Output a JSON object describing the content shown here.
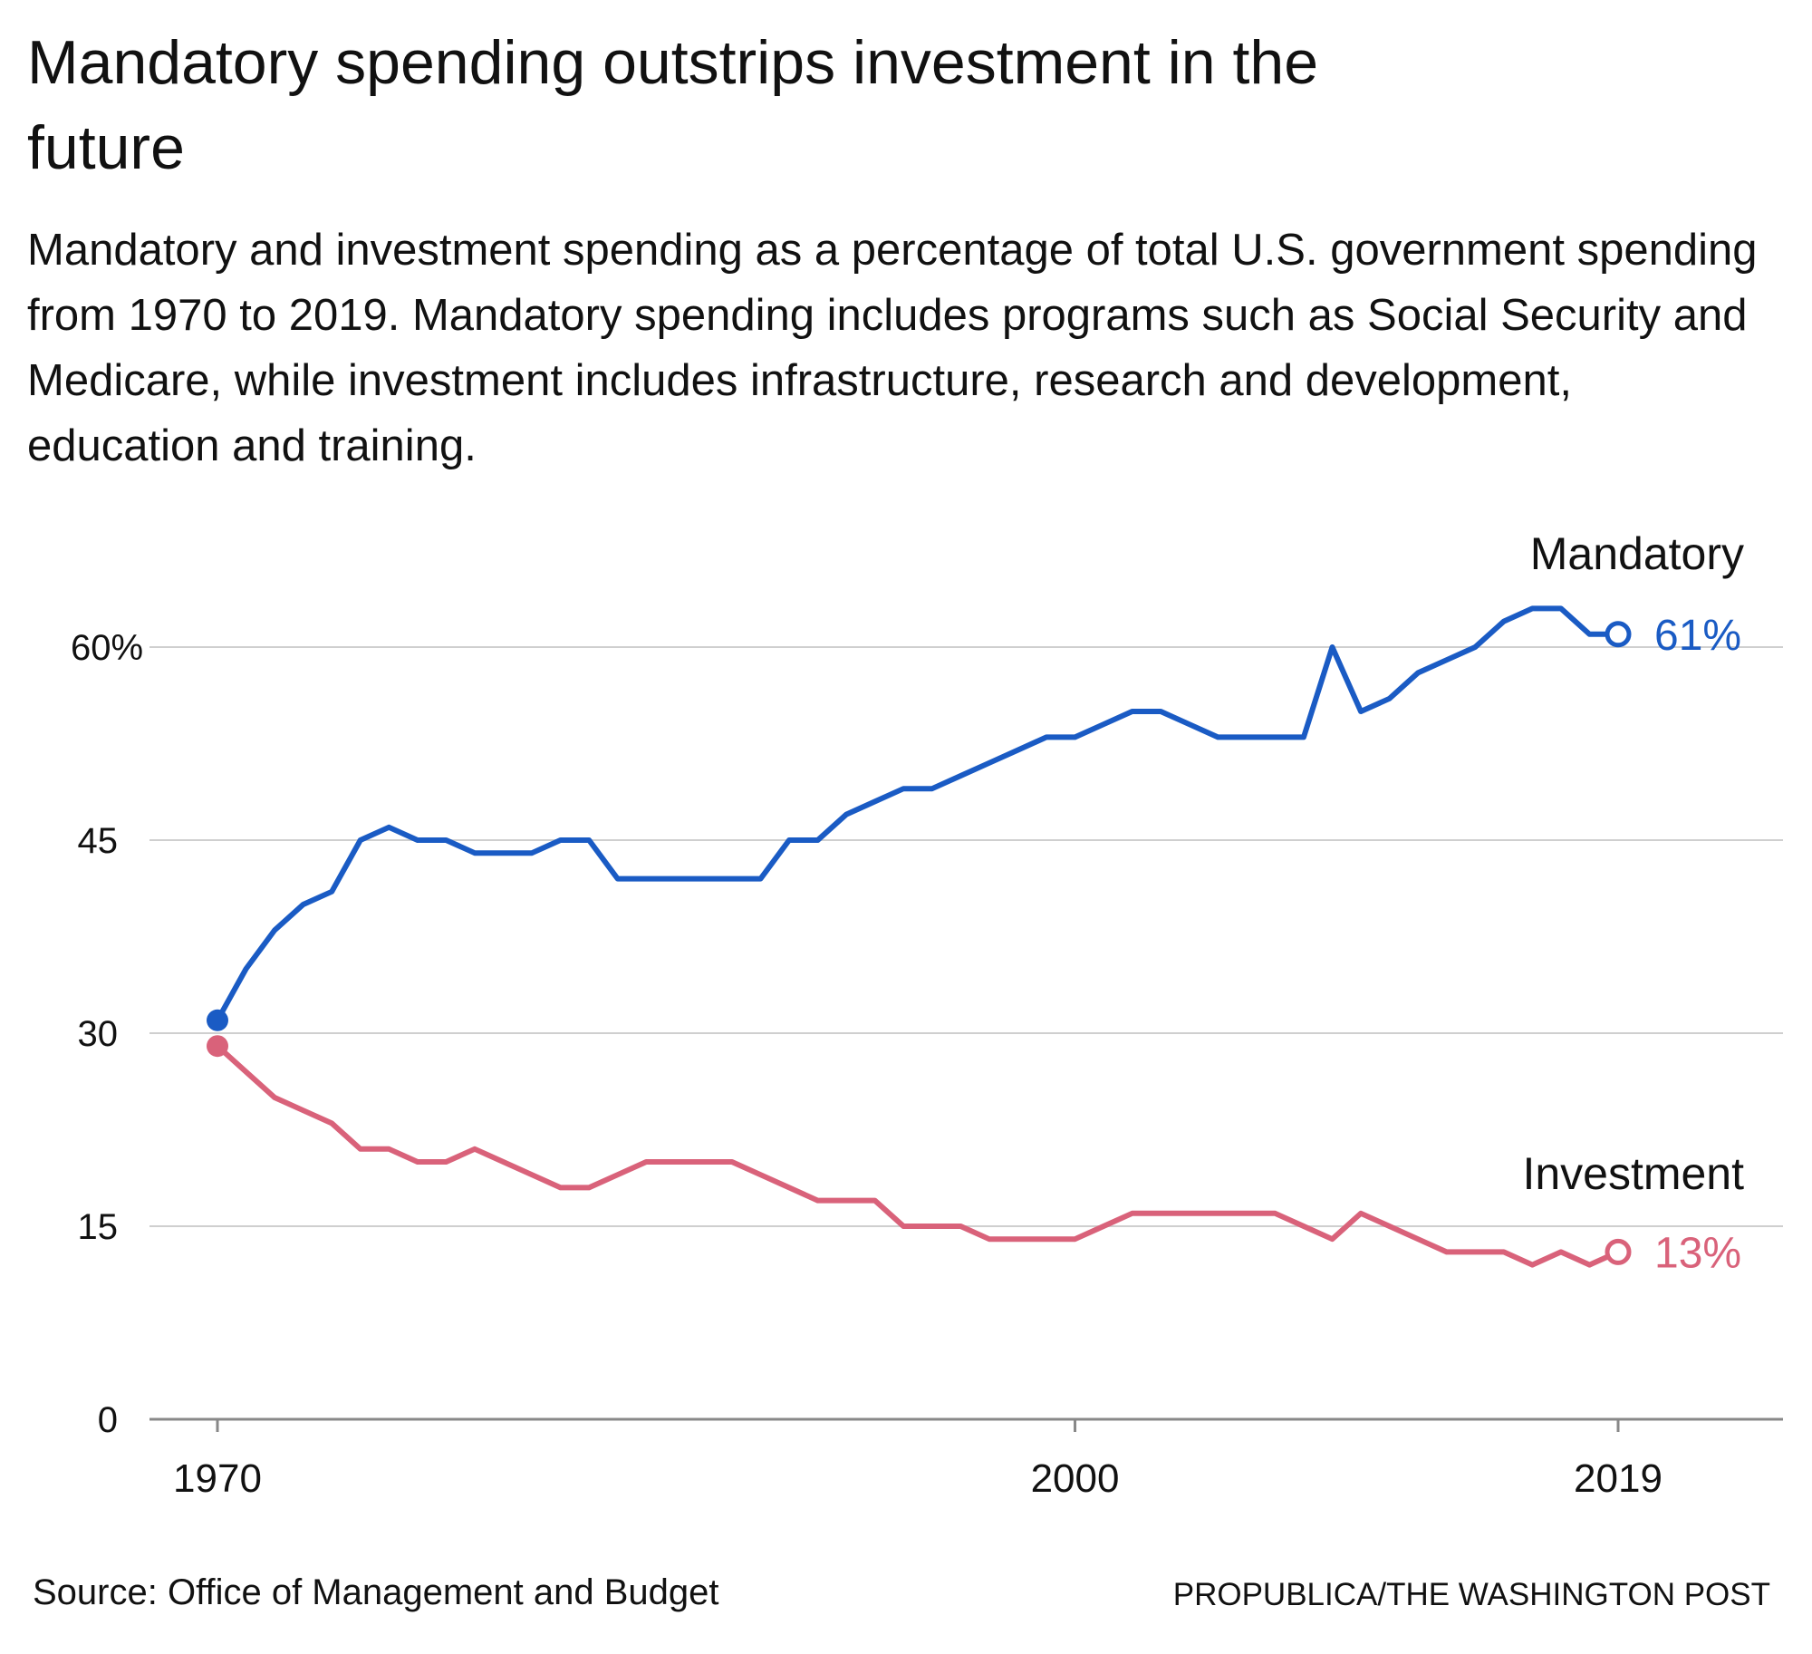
{
  "title": "Mandatory spending outstrips investment in the future",
  "subtitle": "Mandatory and investment spending as a percentage of total U.S. government spending from 1970 to 2019. Mandatory spending includes programs such as Social Security and Medicare, while investment includes infrastructure, research and development, education and training.",
  "source": "Source: Office of Management and Budget",
  "credit": "PROPUBLICA/THE WASHINGTON POST",
  "chart_data": {
    "type": "line",
    "title": "Mandatory spending outstrips investment in the future",
    "xlabel": "",
    "ylabel": "",
    "xlim": [
      1970,
      2019
    ],
    "ylim": [
      0,
      60
    ],
    "grid": true,
    "x_ticks": [
      {
        "value": 1970,
        "label": "1970"
      },
      {
        "value": 2000,
        "label": "2000"
      },
      {
        "value": 2019,
        "label": "2019"
      }
    ],
    "y_ticks": [
      {
        "value": 0,
        "label": "0"
      },
      {
        "value": 15,
        "label": "15"
      },
      {
        "value": 30,
        "label": "30"
      },
      {
        "value": 45,
        "label": "45"
      },
      {
        "value": 60,
        "label": "60%"
      }
    ],
    "x": [
      1970,
      1971,
      1972,
      1973,
      1974,
      1975,
      1976,
      1977,
      1978,
      1979,
      1980,
      1981,
      1982,
      1983,
      1984,
      1985,
      1986,
      1987,
      1988,
      1989,
      1990,
      1991,
      1992,
      1993,
      1994,
      1995,
      1996,
      1997,
      1998,
      1999,
      2000,
      2001,
      2002,
      2003,
      2004,
      2005,
      2006,
      2007,
      2008,
      2009,
      2010,
      2011,
      2012,
      2013,
      2014,
      2015,
      2016,
      2017,
      2018,
      2019
    ],
    "series": [
      {
        "name": "Mandatory",
        "color": "#1a5bc4",
        "end_label": "61%",
        "values": [
          31,
          35,
          38,
          40,
          41,
          45,
          46,
          45,
          45,
          44,
          44,
          44,
          45,
          45,
          42,
          42,
          42,
          42,
          42,
          42,
          45,
          45,
          47,
          48,
          49,
          49,
          50,
          51,
          52,
          53,
          53,
          54,
          55,
          55,
          54,
          53,
          53,
          53,
          53,
          60,
          55,
          56,
          58,
          59,
          60,
          62,
          63,
          63,
          61,
          61
        ]
      },
      {
        "name": "Investment",
        "color": "#d9627a",
        "end_label": "13%",
        "values": [
          29,
          27,
          25,
          24,
          23,
          21,
          21,
          20,
          20,
          21,
          20,
          19,
          18,
          18,
          19,
          20,
          20,
          20,
          20,
          19,
          18,
          17,
          17,
          17,
          15,
          15,
          15,
          14,
          14,
          14,
          14,
          15,
          16,
          16,
          16,
          16,
          16,
          16,
          15,
          14,
          16,
          15,
          14,
          13,
          13,
          13,
          12,
          13,
          12,
          13
        ]
      }
    ]
  }
}
